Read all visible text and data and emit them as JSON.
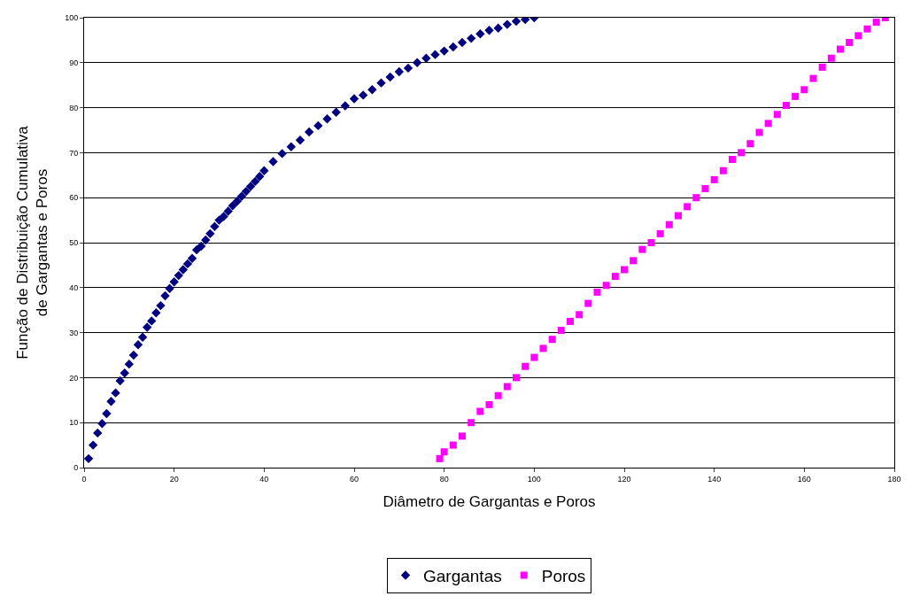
{
  "chart_data": {
    "type": "scatter",
    "xlabel": "Diâmetro de Gargantas e Poros",
    "ylabel": "Função de Distribuição Cumulativa\nde Gargantas e Poros",
    "xlim": [
      0,
      180
    ],
    "xticks": [
      0,
      20,
      40,
      60,
      80,
      100,
      120,
      140,
      160,
      180
    ],
    "ylim": [
      0,
      100
    ],
    "yticks": [
      0,
      10,
      20,
      30,
      40,
      50,
      60,
      70,
      80,
      90,
      100
    ],
    "grid": "y",
    "legend": "bottom",
    "series": [
      {
        "name": "Gargantas",
        "color": "#000080",
        "marker": "diamond",
        "x": [
          1,
          2,
          3,
          4,
          5,
          6,
          7,
          8,
          9,
          10,
          11,
          12,
          13,
          14,
          15,
          16,
          17,
          18,
          19,
          20,
          21,
          22,
          23,
          24,
          25,
          26,
          27,
          28,
          29,
          30,
          31,
          32,
          33,
          34,
          35,
          36,
          37,
          38,
          39,
          40,
          42,
          44,
          46,
          48,
          50,
          52,
          54,
          56,
          58,
          60,
          62,
          64,
          66,
          68,
          70,
          72,
          74,
          76,
          78,
          80,
          82,
          84,
          86,
          88,
          90,
          92,
          94,
          96,
          98,
          100
        ],
        "values": [
          2,
          5,
          7.7,
          9.8,
          12,
          14.7,
          16.6,
          19.3,
          21,
          23,
          25,
          27.3,
          29,
          31.2,
          32.6,
          34.4,
          36,
          38.2,
          39.8,
          41.3,
          42.7,
          44,
          45.3,
          46.5,
          48.4,
          49.2,
          50.6,
          52,
          53.6,
          55,
          55.8,
          57,
          58.2,
          59.2,
          60.3,
          61.4,
          62.5,
          63.6,
          64.7,
          66,
          68,
          69.8,
          71.3,
          72.8,
          74.6,
          76,
          77.5,
          79,
          80.4,
          82,
          82.8,
          84,
          85.5,
          86.8,
          88,
          88.8,
          90,
          91,
          91.8,
          92.6,
          93.5,
          94.5,
          95.4,
          96.4,
          97.2,
          97.7,
          98.5,
          99.2,
          99.6,
          100
        ]
      },
      {
        "name": "Poros",
        "color": "#ff00ff",
        "marker": "square",
        "x": [
          79,
          80,
          82,
          84,
          86,
          88,
          90,
          92,
          94,
          96,
          98,
          100,
          102,
          104,
          106,
          108,
          110,
          112,
          114,
          116,
          118,
          120,
          122,
          124,
          126,
          128,
          130,
          132,
          134,
          136,
          138,
          140,
          142,
          144,
          146,
          148,
          150,
          152,
          154,
          156,
          158,
          160,
          162,
          164,
          166,
          168,
          170,
          172,
          174,
          176,
          178
        ],
        "values": [
          2,
          3.5,
          5,
          7,
          10,
          12.5,
          14,
          16,
          18,
          20,
          22.5,
          24.5,
          26.5,
          28.5,
          30.5,
          32.5,
          34,
          36.5,
          39,
          40.5,
          42.5,
          44,
          46,
          48.5,
          50,
          52,
          54,
          56,
          58,
          60,
          62,
          64,
          66,
          68.5,
          70,
          72,
          74.5,
          76.5,
          78.5,
          80.5,
          82.5,
          84,
          86.5,
          89,
          91,
          93,
          94.5,
          96,
          97.5,
          99,
          100
        ]
      }
    ]
  }
}
